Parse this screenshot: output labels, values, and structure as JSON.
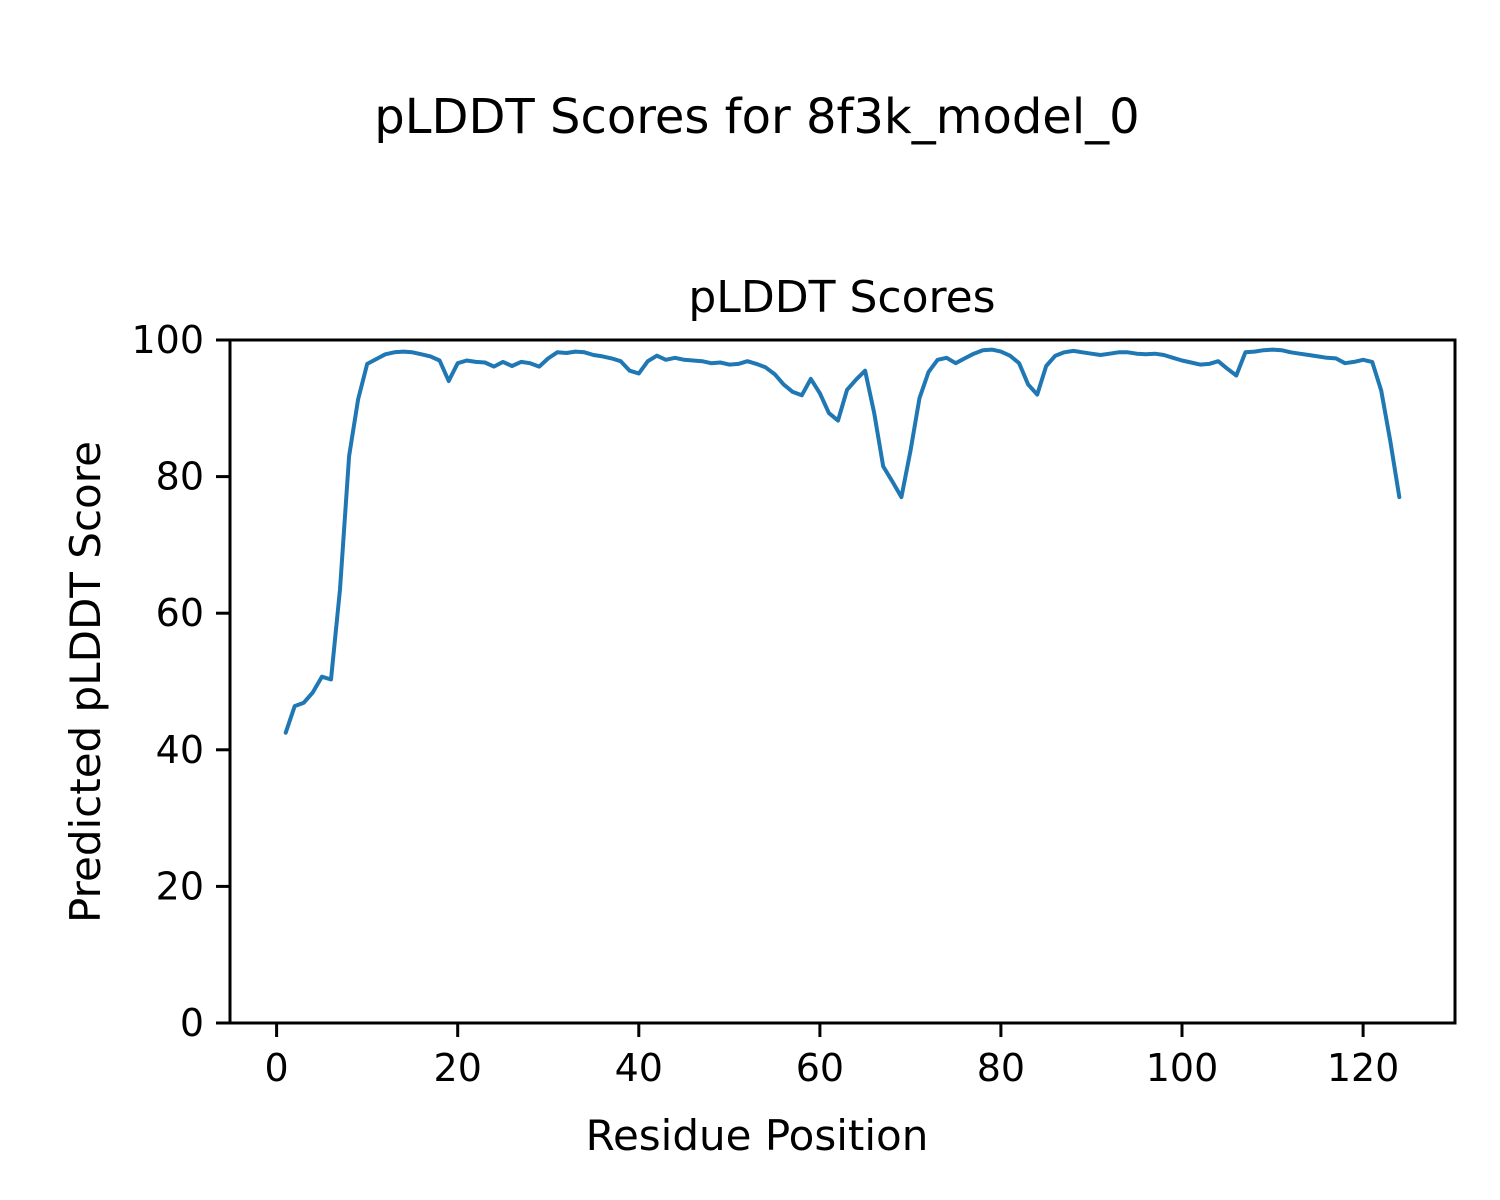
{
  "figure": {
    "suptitle": "pLDDT Scores for 8f3k_model_0"
  },
  "chart_data": {
    "type": "line",
    "title": "pLDDT Scores",
    "xlabel": "Residue Position",
    "ylabel": "Predicted pLDDT Score",
    "xlim": [
      -5.15,
      130.15
    ],
    "ylim": [
      0,
      100
    ],
    "x_ticks": [
      0,
      20,
      40,
      60,
      80,
      100,
      120
    ],
    "y_ticks": [
      0,
      20,
      40,
      60,
      80,
      100
    ],
    "grid": false,
    "legend": null,
    "line_color": "#1f77b4",
    "line_width": 4,
    "series": [
      {
        "name": "pLDDT",
        "x_start": 1,
        "x_step": 1,
        "values": [
          42.5,
          46.4,
          46.9,
          48.4,
          50.7,
          50.3,
          63.5,
          83.0,
          91.3,
          96.5,
          97.2,
          97.9,
          98.2,
          98.3,
          98.2,
          97.9,
          97.6,
          97.0,
          94.0,
          96.6,
          97.0,
          96.8,
          96.7,
          96.1,
          96.8,
          96.2,
          96.8,
          96.6,
          96.1,
          97.3,
          98.2,
          98.1,
          98.3,
          98.2,
          97.8,
          97.6,
          97.3,
          96.9,
          95.5,
          95.1,
          96.9,
          97.7,
          97.1,
          97.4,
          97.1,
          97.0,
          96.9,
          96.6,
          96.7,
          96.4,
          96.5,
          96.9,
          96.5,
          96.0,
          95.0,
          93.5,
          92.4,
          91.9,
          94.3,
          92.2,
          89.3,
          88.2,
          92.7,
          94.2,
          95.5,
          89.3,
          81.5,
          79.3,
          77.0,
          83.7,
          91.5,
          95.3,
          97.1,
          97.4,
          96.6,
          97.3,
          98.0,
          98.5,
          98.6,
          98.3,
          97.7,
          96.6,
          93.5,
          92.0,
          96.2,
          97.7,
          98.2,
          98.4,
          98.2,
          98.0,
          97.8,
          98.0,
          98.2,
          98.2,
          98.0,
          97.9,
          98.0,
          97.8,
          97.4,
          97.0,
          96.7,
          96.4,
          96.5,
          96.9,
          95.8,
          94.8,
          98.2,
          98.3,
          98.5,
          98.6,
          98.5,
          98.2,
          98.0,
          97.8,
          97.6,
          97.4,
          97.3,
          96.6,
          96.8,
          97.1,
          96.8,
          92.6,
          85.2,
          77.0
        ]
      }
    ]
  }
}
